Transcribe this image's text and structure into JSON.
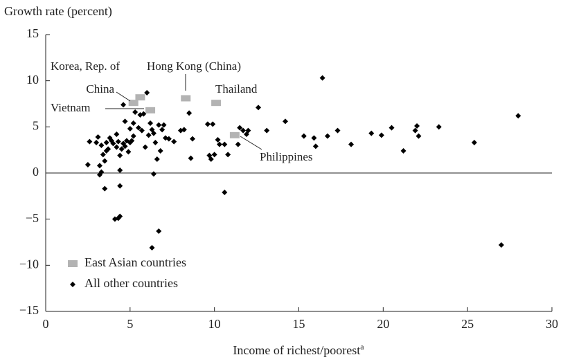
{
  "chart_data": {
    "type": "scatter",
    "y_label": "Growth rate (percent)",
    "x_label": "Income of richest/poorest",
    "x_label_note": "a",
    "xlim": [
      0,
      30
    ],
    "xticks": [
      0,
      5,
      10,
      15,
      20,
      25,
      30
    ],
    "ylim": [
      -15,
      15
    ],
    "yticks": [
      {
        "value": -15,
        "label": "−15"
      },
      {
        "value": -10,
        "label": "−10"
      },
      {
        "value": -5,
        "label": "−5"
      },
      0,
      5,
      10,
      15
    ],
    "legend": "lower left",
    "series": [
      {
        "name": "East Asian countries",
        "color": "#b3b3b3",
        "marker": "square",
        "labels": [
          "Korea, Rep. of",
          "China",
          "Vietnam",
          "Hong Kong (China)",
          "Thailand",
          "Philippines"
        ],
        "x": [
          5.6,
          5.2,
          6.2,
          8.3,
          10.1,
          11.2
        ],
        "values": [
          8.2,
          7.6,
          6.8,
          8.1,
          7.6,
          4.1
        ]
      },
      {
        "name": "All other countries",
        "color": "#000000",
        "marker": "diamond",
        "x": [
          2.5,
          2.6,
          3.0,
          3.1,
          3.2,
          3.2,
          3.3,
          3.3,
          3.4,
          3.5,
          3.5,
          3.6,
          3.6,
          3.7,
          3.8,
          3.9,
          4.0,
          4.1,
          4.2,
          4.2,
          4.3,
          4.3,
          4.4,
          4.4,
          4.4,
          4.4,
          4.5,
          4.6,
          4.6,
          4.7,
          4.7,
          4.8,
          4.9,
          5.0,
          5.0,
          5.1,
          5.2,
          5.2,
          5.3,
          5.5,
          5.6,
          5.7,
          5.8,
          5.9,
          6.0,
          6.1,
          6.2,
          6.3,
          6.3,
          6.4,
          6.4,
          6.5,
          6.6,
          6.7,
          6.7,
          6.8,
          6.9,
          7.0,
          7.1,
          7.3,
          7.6,
          8.0,
          8.2,
          8.5,
          8.6,
          8.7,
          9.6,
          9.7,
          9.8,
          9.9,
          10.0,
          10.2,
          10.3,
          10.6,
          10.6,
          10.8,
          11.4,
          11.5,
          11.7,
          11.9,
          12.0,
          12.6,
          13.1,
          14.2,
          15.3,
          15.9,
          16.0,
          16.4,
          16.7,
          17.3,
          18.1,
          19.3,
          19.9,
          20.5,
          21.2,
          21.9,
          22.0,
          22.1,
          23.3,
          25.4,
          27.0,
          28.0
        ],
        "values": [
          0.9,
          3.4,
          3.3,
          3.9,
          -0.2,
          0.8,
          3.0,
          0.1,
          2.0,
          -1.7,
          1.3,
          2.4,
          3.3,
          2.6,
          3.8,
          3.5,
          3.2,
          -5.0,
          4.2,
          2.8,
          3.4,
          -4.9,
          1.9,
          0.3,
          -1.4,
          -4.7,
          2.6,
          3.2,
          7.4,
          5.6,
          2.9,
          3.5,
          2.3,
          3.3,
          4.8,
          3.5,
          5.4,
          4.0,
          6.6,
          4.9,
          6.3,
          4.6,
          6.4,
          2.8,
          8.7,
          4.1,
          5.4,
          4.7,
          -8.1,
          -0.1,
          4.3,
          3.3,
          1.5,
          -6.3,
          5.2,
          2.4,
          4.7,
          5.2,
          3.8,
          3.7,
          3.4,
          4.6,
          4.7,
          6.5,
          1.6,
          3.7,
          5.3,
          1.9,
          1.5,
          5.3,
          2.0,
          3.6,
          3.1,
          3.1,
          -2.1,
          2.0,
          3.1,
          4.9,
          4.6,
          4.2,
          4.6,
          7.1,
          4.6,
          5.6,
          4.0,
          3.8,
          2.9,
          10.3,
          4.0,
          4.6,
          3.1,
          4.3,
          4.1,
          4.9,
          2.4,
          4.6,
          5.1,
          4.0,
          5.0,
          3.3,
          -7.8,
          6.2
        ]
      }
    ]
  }
}
